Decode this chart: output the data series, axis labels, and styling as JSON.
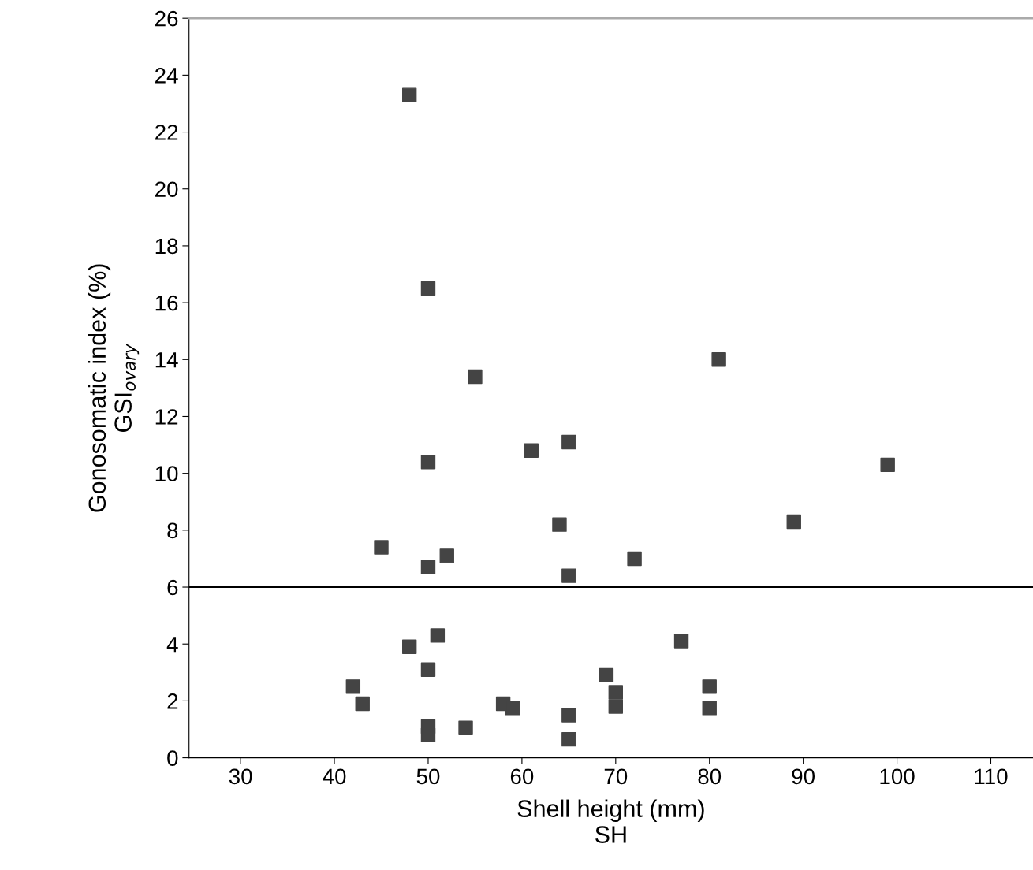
{
  "chart_data": {
    "type": "scatter",
    "xlabel": "Shell height (mm)\nSH",
    "ylabel": "Gonosomatic index (%)\nGSI$_{ovary}$",
    "x": [
      48,
      50,
      55,
      50,
      61,
      65,
      81,
      99,
      89,
      64,
      45,
      50,
      52,
      65,
      72,
      51,
      48,
      77,
      50,
      42,
      43,
      50,
      50,
      54,
      58,
      59,
      65,
      65,
      69,
      70,
      70,
      80,
      80
    ],
    "series": [
      {
        "color": "#444444",
        "values": [
          23.3,
          16.5,
          13.4,
          10.4,
          10.8,
          11.1,
          14.0,
          10.3,
          8.3,
          8.2,
          7.4,
          6.7,
          7.1,
          6.4,
          7.0,
          4.3,
          3.9,
          4.1,
          3.1,
          2.5,
          1.9,
          1.1,
          0.8,
          1.05,
          1.9,
          1.75,
          1.5,
          0.65,
          2.9,
          2.3,
          1.8,
          2.5,
          1.75
        ]
      }
    ],
    "marker": "square",
    "grid": false,
    "legend": false,
    "xlim": [
      24.5,
      114.5
    ],
    "xticks": [
      30,
      40,
      50,
      60,
      70,
      80,
      90,
      100,
      110
    ],
    "ylim": [
      0,
      26
    ],
    "yticks": [
      0,
      2,
      4,
      6,
      8,
      10,
      12,
      14,
      16,
      18,
      20,
      22,
      24,
      26
    ],
    "ref_lines": [
      {
        "axis": "y",
        "value": 6,
        "color": "#000000"
      }
    ]
  }
}
